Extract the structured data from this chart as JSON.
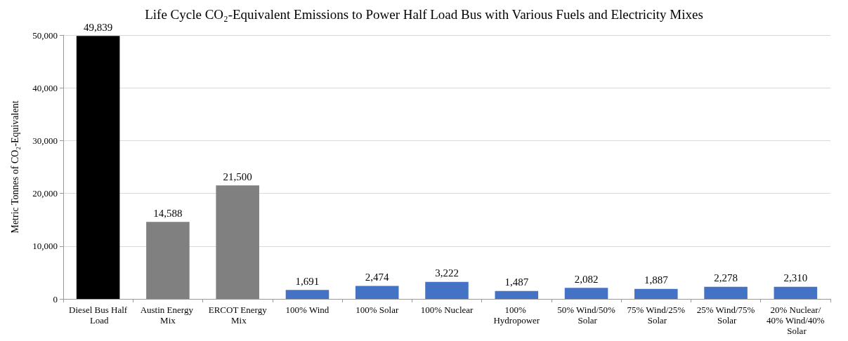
{
  "chart_data": {
    "type": "bar",
    "title": "Life Cycle CO₂-Equivalent Emissions to Power Half Load Bus with Various Fuels and Electricity Mixes",
    "ylabel": "Metric Tonnes of CO₂-Equivalent",
    "categories": [
      "Diesel Bus Half Load",
      "Austin Energy Mix",
      "ERCOT Energy Mix",
      "100% Wind",
      "100% Solar",
      "100% Nuclear",
      "100% Hydropower",
      "50% Wind/50% Solar",
      "75% Wind/25% Solar",
      "25% Wind/75% Solar",
      "20% Nuclear/40% Wind/40% Solar"
    ],
    "values": [
      49839,
      14588,
      21500,
      1691,
      2474,
      3222,
      1487,
      2082,
      1887,
      2278,
      2310
    ],
    "value_labels": [
      "49,839",
      "14,588",
      "21,500",
      "1,691",
      "2,474",
      "3,222",
      "1,487",
      "2,082",
      "1,887",
      "2,278",
      "2,310"
    ],
    "colors": [
      "#000000",
      "#808080",
      "#808080",
      "#4472c4",
      "#4472c4",
      "#4472c4",
      "#4472c4",
      "#4472c4",
      "#4472c4",
      "#4472c4",
      "#4472c4"
    ],
    "ylim": [
      0,
      50000
    ],
    "yticks": [
      {
        "value": 0,
        "label": "0"
      },
      {
        "value": 10000,
        "label": "10,000"
      },
      {
        "value": 20000,
        "label": "20,000"
      },
      {
        "value": 30000,
        "label": "30,000"
      },
      {
        "value": 40000,
        "label": "40,000"
      },
      {
        "value": 50000,
        "label": "50,000"
      }
    ],
    "grid": "y"
  }
}
